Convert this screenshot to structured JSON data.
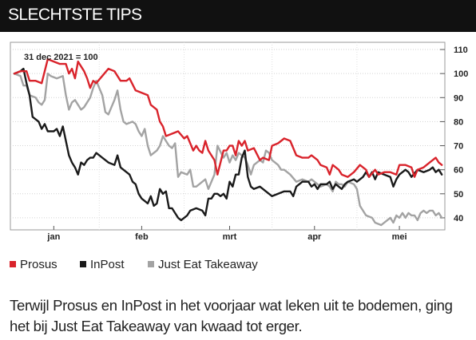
{
  "header": {
    "title": "SLECHTSTE TIPS"
  },
  "caption": "Terwijl Prosus en InPost in het voorjaar wat leken uit te bodemen, ging het bij Just Eat Takeaway van kwaad tot erger.",
  "chart_data": {
    "type": "line",
    "title": "",
    "note": "31 dec 2021 = 100",
    "xlabel": "",
    "ylabel": "",
    "xlim": [
      0,
      142
    ],
    "ylim": [
      35,
      113
    ],
    "yticks": [
      40,
      50,
      60,
      70,
      80,
      90,
      100,
      110
    ],
    "y_axis_side": "right",
    "grid": true,
    "x_ticks": [
      {
        "label": "jan",
        "x": 13
      },
      {
        "label": "feb",
        "x": 42
      },
      {
        "label": "mrt",
        "x": 71
      },
      {
        "label": "apr",
        "x": 99
      },
      {
        "label": "mei",
        "x": 127
      }
    ],
    "month_dividers": [
      28,
      56,
      85,
      113
    ],
    "legend_position": "bottom-left",
    "series": [
      {
        "name": "Prosus",
        "color": "#d9232b",
        "points": [
          [
            0,
            100
          ],
          [
            2,
            101
          ],
          [
            4,
            101
          ],
          [
            5,
            97
          ],
          [
            7,
            97
          ],
          [
            9,
            96
          ],
          [
            11,
            106
          ],
          [
            13,
            105
          ],
          [
            15,
            104
          ],
          [
            17,
            104
          ],
          [
            18,
            100
          ],
          [
            19,
            102
          ],
          [
            20,
            98
          ],
          [
            21,
            105
          ],
          [
            23,
            101
          ],
          [
            24,
            98
          ],
          [
            25,
            94
          ],
          [
            26,
            97
          ],
          [
            27,
            96
          ],
          [
            29,
            99
          ],
          [
            31,
            102
          ],
          [
            33,
            101
          ],
          [
            35,
            97
          ],
          [
            37,
            97
          ],
          [
            38,
            98
          ],
          [
            40,
            93
          ],
          [
            42,
            92
          ],
          [
            44,
            91
          ],
          [
            45,
            87
          ],
          [
            47,
            85
          ],
          [
            48,
            80
          ],
          [
            49,
            78
          ],
          [
            50,
            74
          ],
          [
            52,
            75
          ],
          [
            54,
            76
          ],
          [
            56,
            73
          ],
          [
            57,
            74
          ],
          [
            59,
            68
          ],
          [
            60,
            70
          ],
          [
            61,
            68
          ],
          [
            62,
            67
          ],
          [
            63,
            72
          ],
          [
            64,
            68
          ],
          [
            65,
            66
          ],
          [
            66,
            64
          ],
          [
            67,
            58
          ],
          [
            69,
            68
          ],
          [
            70,
            68
          ],
          [
            71,
            70
          ],
          [
            72,
            70
          ],
          [
            73,
            66
          ],
          [
            74,
            72
          ],
          [
            75,
            70
          ],
          [
            76,
            72
          ],
          [
            77,
            68
          ],
          [
            79,
            69
          ],
          [
            81,
            64
          ],
          [
            82,
            65
          ],
          [
            84,
            64
          ],
          [
            85,
            70
          ],
          [
            87,
            71
          ],
          [
            89,
            73
          ],
          [
            91,
            72
          ],
          [
            93,
            66
          ],
          [
            95,
            65
          ],
          [
            97,
            65
          ],
          [
            98,
            66
          ],
          [
            100,
            64
          ],
          [
            101,
            62
          ],
          [
            103,
            61
          ],
          [
            104,
            58
          ],
          [
            105,
            62
          ],
          [
            107,
            60
          ],
          [
            108,
            58
          ],
          [
            110,
            57
          ],
          [
            112,
            59
          ],
          [
            114,
            62
          ],
          [
            116,
            60
          ],
          [
            117,
            57
          ],
          [
            119,
            60
          ],
          [
            120,
            58
          ],
          [
            122,
            59
          ],
          [
            124,
            59
          ],
          [
            126,
            58
          ],
          [
            127,
            62
          ],
          [
            129,
            62
          ],
          [
            131,
            61
          ],
          [
            132,
            57
          ],
          [
            133,
            60
          ],
          [
            135,
            61
          ],
          [
            137,
            63
          ],
          [
            138,
            64
          ],
          [
            139,
            65
          ],
          [
            140,
            63
          ],
          [
            141,
            62
          ]
        ]
      },
      {
        "name": "InPost",
        "color": "#1a1a1a",
        "points": [
          [
            0,
            100
          ],
          [
            2,
            101
          ],
          [
            3,
            102
          ],
          [
            4,
            96
          ],
          [
            5,
            91
          ],
          [
            6,
            82
          ],
          [
            8,
            80
          ],
          [
            9,
            77
          ],
          [
            10,
            79
          ],
          [
            11,
            76
          ],
          [
            13,
            76
          ],
          [
            14,
            77
          ],
          [
            15,
            74
          ],
          [
            16,
            78
          ],
          [
            17,
            72
          ],
          [
            18,
            66
          ],
          [
            19,
            63
          ],
          [
            20,
            61
          ],
          [
            21,
            58
          ],
          [
            22,
            63
          ],
          [
            23,
            62
          ],
          [
            24,
            64
          ],
          [
            25,
            65
          ],
          [
            26,
            65
          ],
          [
            27,
            67
          ],
          [
            28,
            66
          ],
          [
            30,
            64
          ],
          [
            31,
            63
          ],
          [
            33,
            62
          ],
          [
            34,
            66
          ],
          [
            35,
            61
          ],
          [
            36,
            60
          ],
          [
            38,
            58
          ],
          [
            39,
            55
          ],
          [
            40,
            54
          ],
          [
            41,
            50
          ],
          [
            42,
            48
          ],
          [
            43,
            47
          ],
          [
            44,
            46
          ],
          [
            45,
            49
          ],
          [
            46,
            45
          ],
          [
            47,
            46
          ],
          [
            48,
            52
          ],
          [
            49,
            50
          ],
          [
            50,
            51
          ],
          [
            51,
            44
          ],
          [
            52,
            44
          ],
          [
            53,
            42
          ],
          [
            54,
            40
          ],
          [
            55,
            39
          ],
          [
            56,
            40
          ],
          [
            57,
            41
          ],
          [
            58,
            43
          ],
          [
            60,
            44
          ],
          [
            62,
            43
          ],
          [
            63,
            41
          ],
          [
            64,
            48
          ],
          [
            65,
            48
          ],
          [
            66,
            50
          ],
          [
            67,
            50
          ],
          [
            68,
            49
          ],
          [
            69,
            50
          ],
          [
            70,
            48
          ],
          [
            71,
            55
          ],
          [
            72,
            53
          ],
          [
            73,
            58
          ],
          [
            74,
            58
          ],
          [
            75,
            65
          ],
          [
            76,
            68
          ],
          [
            77,
            57
          ],
          [
            78,
            53
          ],
          [
            79,
            52
          ],
          [
            81,
            53
          ],
          [
            83,
            51
          ],
          [
            85,
            49
          ],
          [
            87,
            50
          ],
          [
            89,
            51
          ],
          [
            91,
            51
          ],
          [
            92,
            49
          ],
          [
            93,
            53
          ],
          [
            95,
            55
          ],
          [
            97,
            55
          ],
          [
            98,
            53
          ],
          [
            99,
            54
          ],
          [
            100,
            52
          ],
          [
            101,
            54
          ],
          [
            103,
            54
          ],
          [
            104,
            55
          ],
          [
            105,
            52
          ],
          [
            106,
            54
          ],
          [
            107,
            53
          ],
          [
            108,
            52
          ],
          [
            109,
            54
          ],
          [
            110,
            55
          ],
          [
            112,
            56
          ],
          [
            113,
            55
          ],
          [
            115,
            57
          ],
          [
            116,
            59
          ],
          [
            117,
            57
          ],
          [
            118,
            59
          ],
          [
            119,
            56
          ],
          [
            120,
            59
          ],
          [
            122,
            58
          ],
          [
            124,
            57
          ],
          [
            125,
            53
          ],
          [
            126,
            56
          ],
          [
            127,
            58
          ],
          [
            129,
            60
          ],
          [
            130,
            59
          ],
          [
            131,
            57
          ],
          [
            133,
            60
          ],
          [
            135,
            59
          ],
          [
            137,
            60
          ],
          [
            138,
            61
          ],
          [
            139,
            59
          ],
          [
            140,
            60
          ],
          [
            141,
            58
          ]
        ]
      },
      {
        "name": "Just Eat Takeaway",
        "color": "#a3a3a3",
        "points": [
          [
            0,
            100
          ],
          [
            2,
            99
          ],
          [
            3,
            95
          ],
          [
            4,
            95
          ],
          [
            5,
            91
          ],
          [
            7,
            90
          ],
          [
            8,
            88
          ],
          [
            9,
            87
          ],
          [
            10,
            89
          ],
          [
            11,
            100
          ],
          [
            12,
            99
          ],
          [
            14,
            98
          ],
          [
            16,
            99
          ],
          [
            17,
            91
          ],
          [
            18,
            85
          ],
          [
            19,
            88
          ],
          [
            20,
            89
          ],
          [
            21,
            87
          ],
          [
            22,
            85
          ],
          [
            23,
            86
          ],
          [
            24,
            88
          ],
          [
            25,
            90
          ],
          [
            26,
            94
          ],
          [
            27,
            97
          ],
          [
            29,
            91
          ],
          [
            30,
            84
          ],
          [
            31,
            83
          ],
          [
            32,
            86
          ],
          [
            33,
            89
          ],
          [
            34,
            93
          ],
          [
            35,
            85
          ],
          [
            36,
            80
          ],
          [
            37,
            79
          ],
          [
            39,
            80
          ],
          [
            40,
            79
          ],
          [
            41,
            76
          ],
          [
            42,
            74
          ],
          [
            43,
            77
          ],
          [
            44,
            70
          ],
          [
            45,
            66
          ],
          [
            47,
            68
          ],
          [
            48,
            70
          ],
          [
            49,
            74
          ],
          [
            51,
            70
          ],
          [
            52,
            69
          ],
          [
            53,
            71
          ],
          [
            54,
            57
          ],
          [
            55,
            59
          ],
          [
            57,
            58
          ],
          [
            58,
            60
          ],
          [
            59,
            53
          ],
          [
            60,
            53
          ],
          [
            61,
            54
          ],
          [
            62,
            55
          ],
          [
            63,
            56
          ],
          [
            64,
            52
          ],
          [
            65,
            55
          ],
          [
            66,
            58
          ],
          [
            67,
            70
          ],
          [
            69,
            65
          ],
          [
            70,
            67
          ],
          [
            71,
            63
          ],
          [
            72,
            66
          ],
          [
            73,
            64
          ],
          [
            74,
            67
          ],
          [
            76,
            65
          ],
          [
            77,
            62
          ],
          [
            78,
            58
          ],
          [
            79,
            62
          ],
          [
            81,
            64
          ],
          [
            82,
            63
          ],
          [
            83,
            68
          ],
          [
            84,
            67
          ],
          [
            85,
            64
          ],
          [
            87,
            62
          ],
          [
            88,
            60
          ],
          [
            89,
            60
          ],
          [
            91,
            58
          ],
          [
            93,
            55
          ],
          [
            95,
            56
          ],
          [
            97,
            55
          ],
          [
            98,
            56
          ],
          [
            100,
            54
          ],
          [
            101,
            53
          ],
          [
            103,
            54
          ],
          [
            104,
            53
          ],
          [
            105,
            51
          ],
          [
            106,
            55
          ],
          [
            107,
            54
          ],
          [
            108,
            54
          ],
          [
            109,
            53
          ],
          [
            110,
            55
          ],
          [
            112,
            54
          ],
          [
            113,
            52
          ],
          [
            114,
            45
          ],
          [
            115,
            43
          ],
          [
            116,
            41
          ],
          [
            118,
            40
          ],
          [
            119,
            38
          ],
          [
            121,
            37
          ],
          [
            123,
            39
          ],
          [
            124,
            40
          ],
          [
            125,
            38
          ],
          [
            126,
            41
          ],
          [
            127,
            40
          ],
          [
            128,
            42
          ],
          [
            129,
            40
          ],
          [
            130,
            42
          ],
          [
            131,
            41
          ],
          [
            132,
            41
          ],
          [
            133,
            39
          ],
          [
            134,
            42
          ],
          [
            135,
            43
          ],
          [
            136,
            42
          ],
          [
            137,
            43
          ],
          [
            138,
            43
          ],
          [
            139,
            41
          ],
          [
            140,
            42
          ],
          [
            141,
            40
          ]
        ]
      }
    ]
  }
}
